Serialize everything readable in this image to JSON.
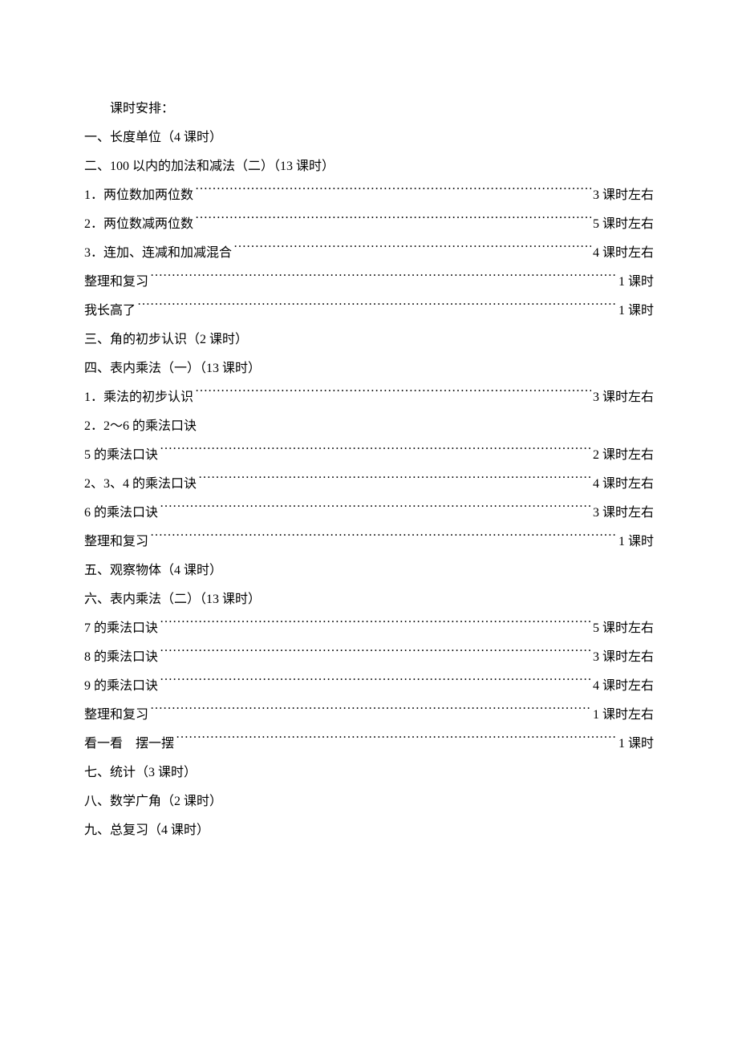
{
  "title": "课时安排：",
  "lines": [
    {
      "type": "section",
      "text": "一、长度单位（4 课时）"
    },
    {
      "type": "section",
      "text": "二、100 以内的加法和减法（二）（13 课时）"
    },
    {
      "type": "toc",
      "label": "1．两位数加两位数",
      "value": "3 课时左右"
    },
    {
      "type": "toc",
      "label": "2．两位数减两位数",
      "value": "5 课时左右"
    },
    {
      "type": "toc",
      "label": "3．连加、连减和加减混合",
      "value": "4 课时左右"
    },
    {
      "type": "toc",
      "label": "整理和复习 ",
      "value": "1 课时"
    },
    {
      "type": "toc",
      "label": "我长高了 ",
      "value": "1 课时"
    },
    {
      "type": "section",
      "text": "三、角的初步认识（2 课时）"
    },
    {
      "type": "section",
      "text": "四、表内乘法（一）（13 课时）"
    },
    {
      "type": "toc",
      "label": "1．乘法的初步认识",
      "value": "3 课时左右"
    },
    {
      "type": "section",
      "text": "2．2～6 的乘法口诀"
    },
    {
      "type": "toc",
      "label": "5 的乘法口诀",
      "value": "2 课时左右"
    },
    {
      "type": "toc",
      "label": "2、3、4 的乘法口诀",
      "value": "4 课时左右"
    },
    {
      "type": "toc",
      "label": "6 的乘法口诀",
      "value": "3 课时左右"
    },
    {
      "type": "toc",
      "label": "整理和复习 ",
      "value": "1 课时"
    },
    {
      "type": "section",
      "text": "五、观察物体（4 课时）"
    },
    {
      "type": "section",
      "text": "六、表内乘法（二）（13 课时）"
    },
    {
      "type": "toc",
      "label": "7 的乘法口诀",
      "value": "5 课时左右"
    },
    {
      "type": "toc",
      "label": "8 的乘法口诀",
      "value": "3 课时左右"
    },
    {
      "type": "toc",
      "label": "9 的乘法口诀",
      "value": "4 课时左右"
    },
    {
      "type": "toc",
      "label": "整理和复习 ",
      "value": "1 课时左右"
    },
    {
      "type": "toc",
      "label": "看一看　摆一摆 ",
      "value": "1 课时"
    },
    {
      "type": "section",
      "text": "七、统计（3 课时）"
    },
    {
      "type": "section",
      "text": "八、数学广角（2 课时）"
    },
    {
      "type": "section",
      "text": "九、总复习（4 课时）"
    }
  ]
}
